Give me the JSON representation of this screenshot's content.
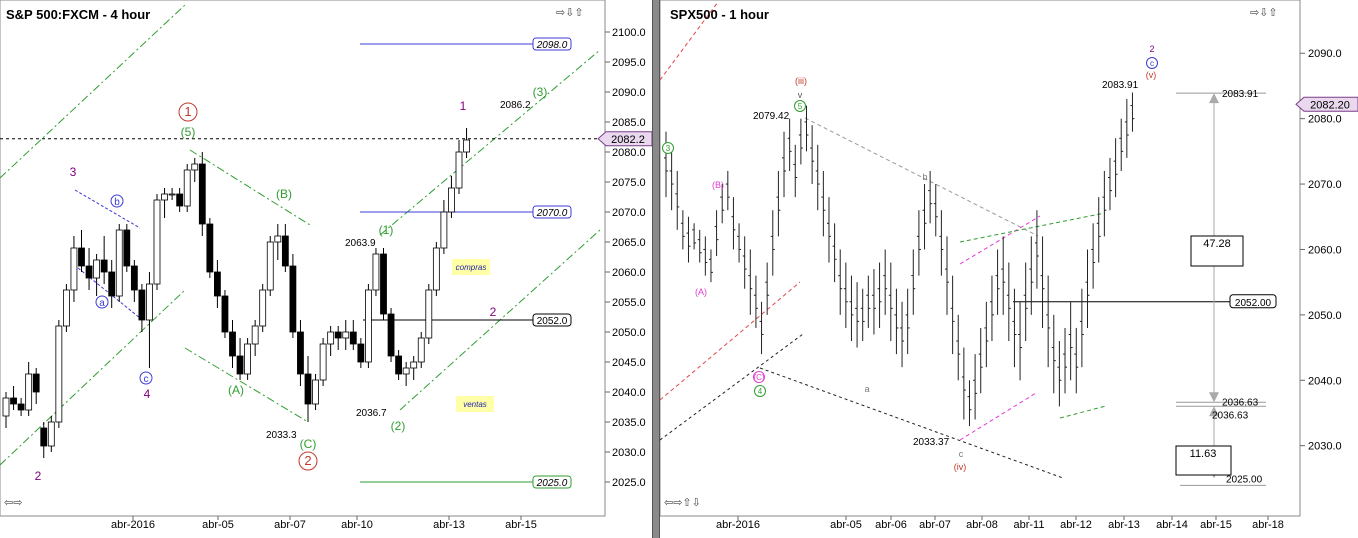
{
  "colors": {
    "bull": "#ffffff",
    "bear": "#000000",
    "green_channel": "#2f9e2f",
    "blue_dash": "#3b3bd6",
    "pink": "#e23ad4",
    "red_dash": "#e04848",
    "gray_dash": "#999999",
    "wave_purple": "#800080",
    "wave_red": "#c0392b",
    "highlight_yellow": "#ffffa8",
    "price_tag_purple": "#7a3c8a"
  },
  "icons": {
    "arrows": "arrow-icons",
    "corner": "resize-arrows-icon"
  },
  "chart_data": [
    {
      "type": "candlestick",
      "title": "S&P 500:FXCM - 4 hour",
      "x_tick_labels": [
        "abr-2016",
        "abr-05",
        "abr-07",
        "abr-10",
        "abr-13",
        "abr-15"
      ],
      "y_ticks": [
        2025.0,
        2030.0,
        2035.0,
        2040.0,
        2045.0,
        2050.0,
        2055.0,
        2060.0,
        2065.0,
        2070.0,
        2075.0,
        2080.0,
        2085.0,
        2090.0,
        2095.0,
        2100.0
      ],
      "ylim": [
        2022.0,
        2103.0
      ],
      "current_price": "2082.2",
      "levels": [
        {
          "label": "2098.0",
          "value": 2098.0,
          "color": "#3b3bd6"
        },
        {
          "label": "2070.0",
          "value": 2070.0,
          "color": "#3b3bd6"
        },
        {
          "label": "2052.0",
          "value": 2052.0,
          "color": "#000000"
        },
        {
          "label": "2025.0",
          "value": 2025.0,
          "color": "#2f9e2f"
        }
      ],
      "price_labels": [
        {
          "text": "2086.2",
          "value": 2086.2
        },
        {
          "text": "2063.9",
          "value": 2063.9
        },
        {
          "text": "2036.7",
          "value": 2036.7
        },
        {
          "text": "2033.3",
          "value": 2033.3
        }
      ],
      "wave_labels": [
        {
          "text": "1",
          "style": "circle",
          "color": "#c0392b",
          "index": 25
        },
        {
          "text": "(5)",
          "style": "plain",
          "color": "#2f9e2f",
          "index": 25
        },
        {
          "text": "2",
          "style": "circle",
          "color": "#c0392b",
          "index": 40
        },
        {
          "text": "(C)",
          "style": "plain",
          "color": "#2f9e2f",
          "index": 40
        },
        {
          "text": "(B)",
          "style": "plain",
          "color": "#2f9e2f",
          "index": 37
        },
        {
          "text": "(A)",
          "style": "plain",
          "color": "#2f9e2f",
          "index": 31
        },
        {
          "text": "(1)",
          "style": "plain",
          "color": "#2f9e2f",
          "index": 51
        },
        {
          "text": "(2)",
          "style": "plain",
          "color": "#2f9e2f",
          "index": 53
        },
        {
          "text": "(3)",
          "style": "plain",
          "color": "#2f9e2f",
          "index": 71
        },
        {
          "text": "1",
          "style": "plain",
          "color": "#800080",
          "index": 61
        },
        {
          "text": "2",
          "style": "plain",
          "color": "#800080",
          "index": 65
        },
        {
          "text": "3",
          "style": "plain",
          "color": "#800080",
          "index": 9
        },
        {
          "text": "4",
          "style": "plain",
          "color": "#800080",
          "index": 19
        },
        {
          "text": "2",
          "style": "plain",
          "color": "#800080",
          "index": 5
        },
        {
          "text": "b",
          "style": "circle",
          "color": "#3b3bd6",
          "index": 15
        },
        {
          "text": "a",
          "style": "circle",
          "color": "#3b3bd6",
          "index": 13
        },
        {
          "text": "c",
          "style": "circle",
          "color": "#3b3bd6",
          "index": 19
        }
      ],
      "notes": [
        {
          "text": "compras"
        },
        {
          "text": "ventas"
        }
      ],
      "candles": [
        [
          2036,
          2040,
          2034,
          2039
        ],
        [
          2039,
          2041,
          2037,
          2038
        ],
        [
          2038,
          2039,
          2036,
          2037
        ],
        [
          2037,
          2045,
          2036,
          2043
        ],
        [
          2043,
          2044,
          2038,
          2040
        ],
        [
          2034,
          2035,
          2029,
          2031
        ],
        [
          2031,
          2036,
          2030,
          2035
        ],
        [
          2035,
          2052,
          2034,
          2051
        ],
        [
          2051,
          2058,
          2050,
          2057
        ],
        [
          2057,
          2066,
          2055,
          2064
        ],
        [
          2064,
          2067,
          2060,
          2061
        ],
        [
          2061,
          2064,
          2057,
          2059
        ],
        [
          2059,
          2063,
          2056,
          2062
        ],
        [
          2062,
          2066,
          2058,
          2060
        ],
        [
          2060,
          2062,
          2054,
          2056
        ],
        [
          2056,
          2068,
          2055,
          2067
        ],
        [
          2067,
          2068,
          2060,
          2061
        ],
        [
          2061,
          2062,
          2055,
          2057
        ],
        [
          2057,
          2058,
          2050,
          2052
        ],
        [
          2052,
          2060,
          2044,
          2058
        ],
        [
          2058,
          2073,
          2057,
          2072
        ],
        [
          2072,
          2074,
          2069,
          2073
        ],
        [
          2073,
          2074,
          2072,
          2073
        ],
        [
          2073,
          2074,
          2070,
          2071
        ],
        [
          2071,
          2078,
          2070,
          2077
        ],
        [
          2077,
          2079,
          2075,
          2078
        ],
        [
          2078,
          2080,
          2066,
          2068
        ],
        [
          2068,
          2069,
          2059,
          2060
        ],
        [
          2060,
          2062,
          2054,
          2056
        ],
        [
          2056,
          2057,
          2049,
          2050
        ],
        [
          2050,
          2052,
          2044,
          2046
        ],
        [
          2046,
          2049,
          2042,
          2043
        ],
        [
          2043,
          2049,
          2042,
          2048
        ],
        [
          2048,
          2052,
          2046,
          2051
        ],
        [
          2051,
          2058,
          2050,
          2057
        ],
        [
          2057,
          2066,
          2056,
          2065
        ],
        [
          2065,
          2068,
          2062,
          2066
        ],
        [
          2066,
          2068,
          2060,
          2061
        ],
        [
          2061,
          2063,
          2049,
          2050
        ],
        [
          2050,
          2052,
          2041,
          2043
        ],
        [
          2043,
          2046,
          2035,
          2038
        ],
        [
          2038,
          2043,
          2037,
          2042
        ],
        [
          2042,
          2049,
          2041,
          2048
        ],
        [
          2048,
          2051,
          2046,
          2050
        ],
        [
          2050,
          2051,
          2047,
          2049
        ],
        [
          2049,
          2052,
          2047,
          2050
        ],
        [
          2050,
          2052,
          2047,
          2048
        ],
        [
          2048,
          2049,
          2044,
          2045
        ],
        [
          2045,
          2058,
          2044,
          2057
        ],
        [
          2057,
          2064,
          2056,
          2063
        ],
        [
          2063,
          2064,
          2052,
          2053
        ],
        [
          2053,
          2054,
          2045,
          2046
        ],
        [
          2046,
          2047,
          2042,
          2043
        ],
        [
          2043,
          2045,
          2041,
          2044
        ],
        [
          2044,
          2046,
          2042,
          2045
        ],
        [
          2045,
          2050,
          2044,
          2049
        ],
        [
          2049,
          2058,
          2048,
          2057
        ],
        [
          2057,
          2065,
          2056,
          2064
        ],
        [
          2064,
          2072,
          2063,
          2070
        ],
        [
          2070,
          2076,
          2069,
          2074
        ],
        [
          2074,
          2082,
          2073,
          2080
        ],
        [
          2080,
          2084,
          2079,
          2082
        ]
      ]
    },
    {
      "type": "bar-ohlc",
      "title": "SPX500 - 1 hour",
      "x_tick_labels": [
        "abr-2016",
        "abr-05",
        "abr-06",
        "abr-07",
        "abr-08",
        "abr-11",
        "abr-12",
        "abr-13",
        "abr-14",
        "abr-15",
        "abr-18"
      ],
      "y_ticks": [
        2030.0,
        2040.0,
        2050.0,
        2060.0,
        2070.0,
        2080.0,
        2090.0
      ],
      "ylim": [
        2022.0,
        2096.0
      ],
      "current_price": "2082.20",
      "levels": [
        {
          "label": "2052.00",
          "value": 2052.0,
          "color": "#000000"
        }
      ],
      "price_labels": [
        {
          "text": "2083.91",
          "value": 2083.91
        },
        {
          "text": "2079.42",
          "value": 2079.42
        },
        {
          "text": "2033.37",
          "value": 2033.37
        }
      ],
      "measure": {
        "top": 2083.91,
        "top_label": "2083.91",
        "bottom": 2036.63,
        "bottom_label": "2036.63",
        "diff": "47.28",
        "low": 2025.0,
        "low_label": "2025.00",
        "diff2": "11.63"
      },
      "wave_labels": [
        {
          "text": "3",
          "style": "circle",
          "color": "#2f9e2f"
        },
        {
          "text": "(B)",
          "style": "plain",
          "color": "#e23ad4"
        },
        {
          "text": "(A)",
          "style": "plain",
          "color": "#e23ad4"
        },
        {
          "text": "(C)",
          "style": "circle",
          "color": "#e23ad4"
        },
        {
          "text": "4",
          "style": "circle",
          "color": "#2f9e2f"
        },
        {
          "text": "(iii)",
          "style": "plain",
          "color": "#c0392b"
        },
        {
          "text": "v",
          "style": "plain",
          "color": "#555555"
        },
        {
          "text": "5",
          "style": "circle",
          "color": "#2f9e2f"
        },
        {
          "text": "b",
          "style": "plain",
          "color": "#777777"
        },
        {
          "text": "a",
          "style": "plain",
          "color": "#777777"
        },
        {
          "text": "c",
          "style": "plain",
          "color": "#777777"
        },
        {
          "text": "(iv)",
          "style": "plain",
          "color": "#c0392b"
        },
        {
          "text": "2",
          "style": "plain",
          "color": "#800080"
        },
        {
          "text": "c",
          "style": "circle",
          "color": "#3b3bd6"
        },
        {
          "text": "(v)",
          "style": "plain",
          "color": "#c0392b"
        }
      ],
      "bars": [
        [
          2078,
          2068
        ],
        [
          2076,
          2066
        ],
        [
          2072,
          2063
        ],
        [
          2066,
          2060
        ],
        [
          2065,
          2058
        ],
        [
          2064,
          2060
        ],
        [
          2063,
          2058
        ],
        [
          2062,
          2056
        ],
        [
          2060,
          2055
        ],
        [
          2066,
          2059
        ],
        [
          2070,
          2064
        ],
        [
          2072,
          2066
        ],
        [
          2068,
          2060
        ],
        [
          2064,
          2058
        ],
        [
          2062,
          2054
        ],
        [
          2060,
          2050
        ],
        [
          2056,
          2048
        ],
        [
          2052,
          2044
        ],
        [
          2058,
          2050
        ],
        [
          2066,
          2056
        ],
        [
          2072,
          2062
        ],
        [
          2078,
          2068
        ],
        [
          2080,
          2072
        ],
        [
          2076,
          2068
        ],
        [
          2080,
          2073
        ],
        [
          2082,
          2075
        ],
        [
          2079,
          2070
        ],
        [
          2076,
          2066
        ],
        [
          2072,
          2062
        ],
        [
          2068,
          2058
        ],
        [
          2064,
          2055
        ],
        [
          2060,
          2050
        ],
        [
          2058,
          2048
        ],
        [
          2056,
          2046
        ],
        [
          2055,
          2045
        ],
        [
          2054,
          2046
        ],
        [
          2056,
          2048
        ],
        [
          2057,
          2047
        ],
        [
          2058,
          2048
        ],
        [
          2060,
          2050
        ],
        [
          2058,
          2046
        ],
        [
          2054,
          2044
        ],
        [
          2052,
          2042
        ],
        [
          2054,
          2044
        ],
        [
          2060,
          2050
        ],
        [
          2066,
          2056
        ],
        [
          2070,
          2060
        ],
        [
          2072,
          2064
        ],
        [
          2070,
          2062
        ],
        [
          2066,
          2056
        ],
        [
          2062,
          2050
        ],
        [
          2056,
          2044
        ],
        [
          2050,
          2040
        ],
        [
          2045,
          2034
        ],
        [
          2040,
          2033
        ],
        [
          2044,
          2034
        ],
        [
          2048,
          2038
        ],
        [
          2052,
          2042
        ],
        [
          2056,
          2046
        ],
        [
          2060,
          2050
        ],
        [
          2062,
          2050
        ],
        [
          2058,
          2046
        ],
        [
          2054,
          2042
        ],
        [
          2052,
          2040
        ],
        [
          2058,
          2046
        ],
        [
          2062,
          2050
        ],
        [
          2066,
          2054
        ],
        [
          2062,
          2048
        ],
        [
          2056,
          2042
        ],
        [
          2050,
          2038
        ],
        [
          2046,
          2036
        ],
        [
          2048,
          2038
        ],
        [
          2052,
          2040
        ],
        [
          2048,
          2038
        ],
        [
          2054,
          2042
        ],
        [
          2060,
          2048
        ],
        [
          2064,
          2054
        ],
        [
          2068,
          2058
        ],
        [
          2072,
          2062
        ],
        [
          2074,
          2066
        ],
        [
          2077,
          2068
        ],
        [
          2080,
          2072
        ],
        [
          2083,
          2074
        ],
        [
          2084,
          2078
        ]
      ]
    }
  ]
}
